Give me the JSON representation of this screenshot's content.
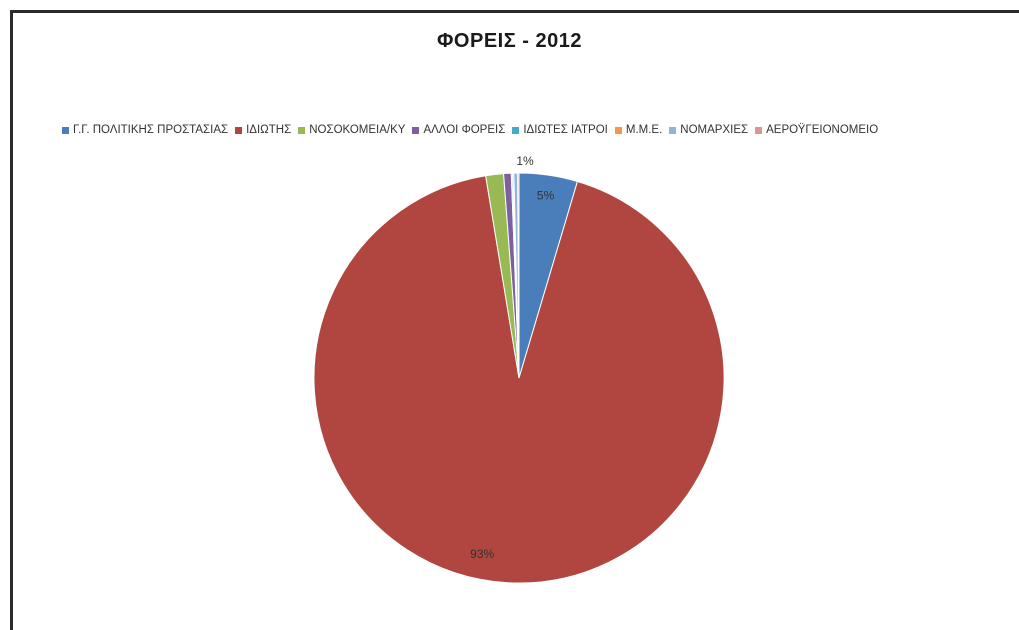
{
  "chart_data": {
    "type": "pie",
    "title": "ΦΟΡΕΙΣ - 2012",
    "legend_position": "top",
    "slices": [
      {
        "label": "Γ.Γ. ΠΟΛΙΤΙΚΗΣ ΠΡΟΣΤΑΣΙΑΣ",
        "value": 4.6,
        "color": "#4a7ebb",
        "data_label": "5%"
      },
      {
        "label": "ΙΔΙΩΤΗΣ",
        "value": 92.8,
        "color": "#b0463f",
        "data_label": "93%"
      },
      {
        "label": "ΝΟΣΟΚΟΜΕΙΑ/ΚΥ",
        "value": 1.4,
        "color": "#98b954",
        "data_label": "1%"
      },
      {
        "label": "ΑΛΛΟΙ ΦΟΡΕΙΣ",
        "value": 0.6,
        "color": "#7d60a0",
        "data_label": ""
      },
      {
        "label": "ΙΔΙΩΤΕΣ ΙΑΤΡΟΙ",
        "value": 0.1,
        "color": "#46aac5",
        "data_label": ""
      },
      {
        "label": "Μ.Μ.Ε.",
        "value": 0.1,
        "color": "#f79646",
        "data_label": ""
      },
      {
        "label": "ΝΟΜΑΡΧΙΕΣ",
        "value": 0.3,
        "color": "#95b3d7",
        "data_label": ""
      },
      {
        "label": "ΑΕΡΟΫΓΕΙΟΝΟΜΕΙΟ",
        "value": 0.1,
        "color": "#d99694",
        "data_label": ""
      }
    ]
  }
}
